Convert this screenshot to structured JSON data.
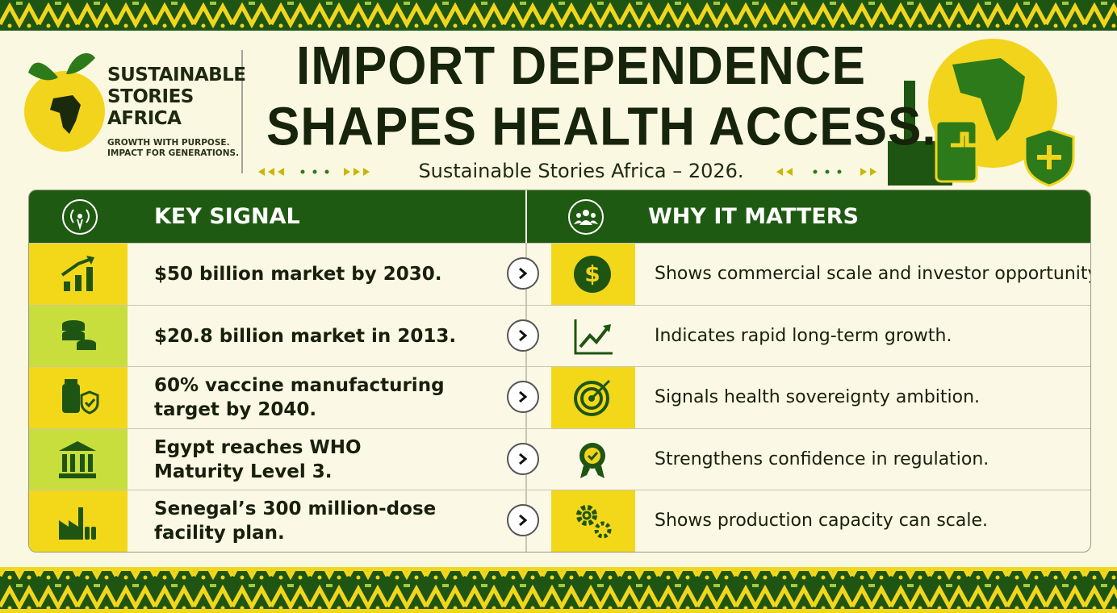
{
  "header": {
    "brand": [
      "SUSTAINABLE",
      "STORIES",
      "AFRICA"
    ],
    "tagline": [
      "GROWTH WITH PURPOSE.",
      "IMPACT FOR GENERATIONS."
    ],
    "title": [
      "IMPORT DEPENDENCE",
      "SHAPES HEALTH ACCESS."
    ],
    "subtitle": "Sustainable Stories Africa – 2026."
  },
  "table": {
    "columns": [
      "KEY SIGNAL",
      "WHY IT MATTERS"
    ],
    "rows": [
      {
        "signal": [
          "$50 billion market by 2030."
        ],
        "why": "Shows commercial scale and investor opportunity."
      },
      {
        "signal": [
          "$20.8 billion market in 2013."
        ],
        "why": "Indicates rapid long-term growth."
      },
      {
        "signal": [
          "60% vaccine manufacturing",
          "target by 2040."
        ],
        "why": "Signals health sovereignty ambition."
      },
      {
        "signal": [
          "Egypt reaches WHO",
          "Maturity Level 3."
        ],
        "why": "Strengthens confidence in regulation."
      },
      {
        "signal": [
          "Senegal’s 300 million-dose",
          "facility plan."
        ],
        "why": "Shows production capacity can scale."
      }
    ]
  }
}
